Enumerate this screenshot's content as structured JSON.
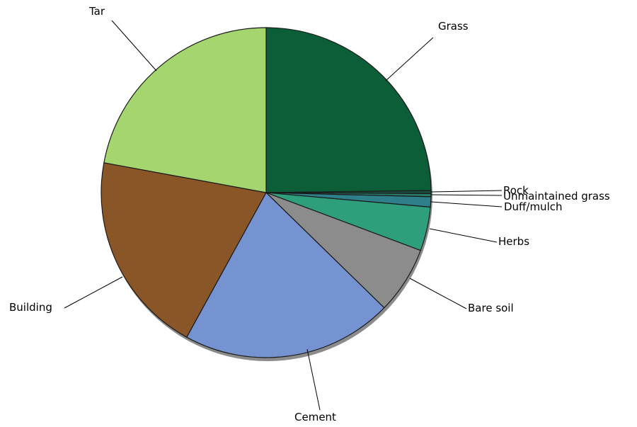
{
  "chart_data": {
    "type": "pie",
    "categories": [
      "Grass",
      "Rock",
      "Unmaintained grass",
      "Duff/mulch",
      "Herbs",
      "Bare soil",
      "Cement",
      "Building",
      "Tar"
    ],
    "values": [
      24.8,
      0.3,
      0.3,
      1.0,
      4.3,
      6.6,
      20.7,
      19.9,
      22.1
    ],
    "colors": [
      "#0b5e38",
      "#1b4d3e",
      "#2a7a6a",
      "#2f7f8a",
      "#2e9e7c",
      "#8c8c8c",
      "#7593d1",
      "#8a5527",
      "#a4d56f"
    ],
    "legend": "none"
  }
}
